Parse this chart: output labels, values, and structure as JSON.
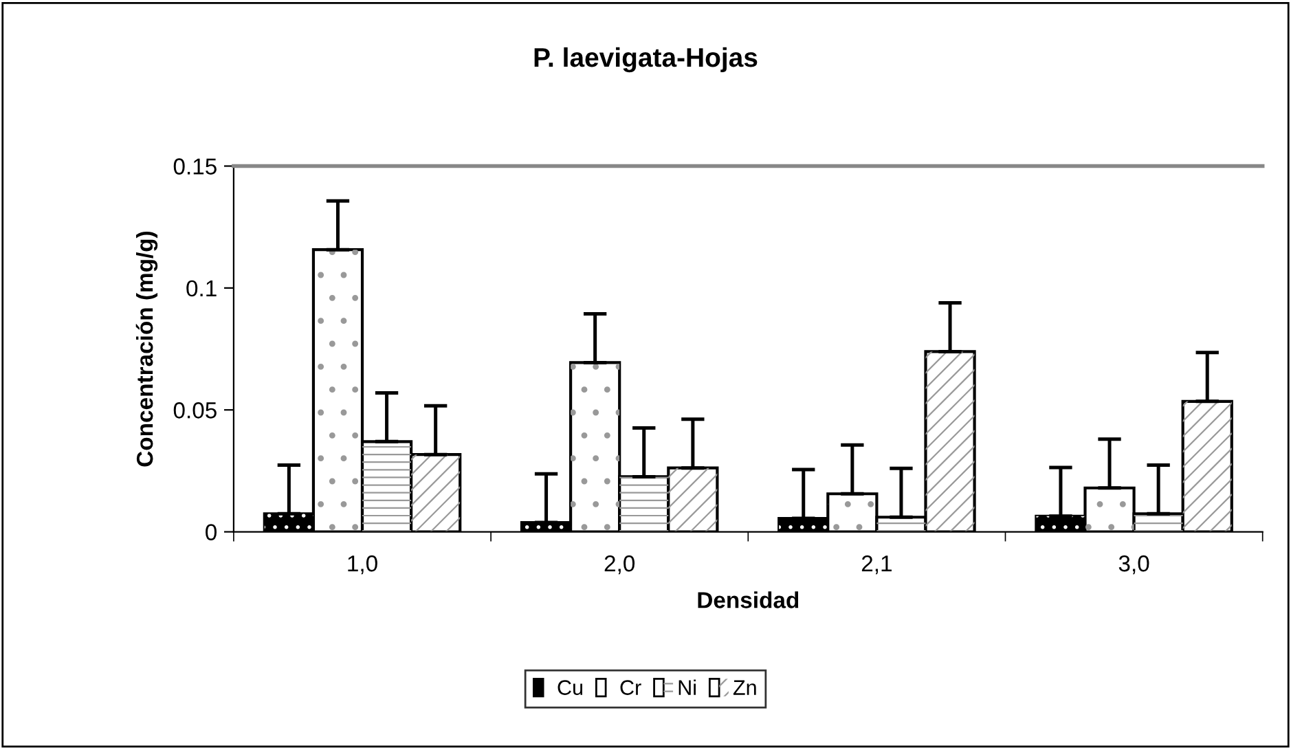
{
  "chart_data": {
    "type": "bar",
    "title": "P. laevigata-Hojas",
    "xlabel": "Densidad",
    "ylabel": "Concentración (mg/g)",
    "categories": [
      "1,0",
      "2,0",
      "2,1",
      "3,0"
    ],
    "series": [
      {
        "name": "Cu",
        "color": "#000000",
        "values": [
          0.0074,
          0.0038,
          0.0055,
          0.0064
        ],
        "errors": [
          0.02,
          0.02,
          0.02,
          0.02
        ]
      },
      {
        "name": "Cr",
        "color": "#ffffff",
        "values": [
          0.1157,
          0.0694,
          0.0156,
          0.018
        ],
        "errors": [
          0.02,
          0.02,
          0.02,
          0.02
        ]
      },
      {
        "name": "Ni",
        "color": "#ffffff",
        "values": [
          0.037,
          0.0226,
          0.006,
          0.0074
        ],
        "errors": [
          0.02,
          0.02,
          0.02,
          0.02
        ]
      },
      {
        "name": "Zn",
        "color": "#ffffff",
        "values": [
          0.0317,
          0.0262,
          0.0739,
          0.0535
        ],
        "errors": [
          0.02,
          0.02,
          0.02,
          0.02
        ]
      }
    ],
    "ylim": [
      0,
      0.15
    ],
    "yticks": [
      0,
      0.05,
      0.1,
      0.15
    ],
    "grid": false,
    "legend": "bottom"
  }
}
